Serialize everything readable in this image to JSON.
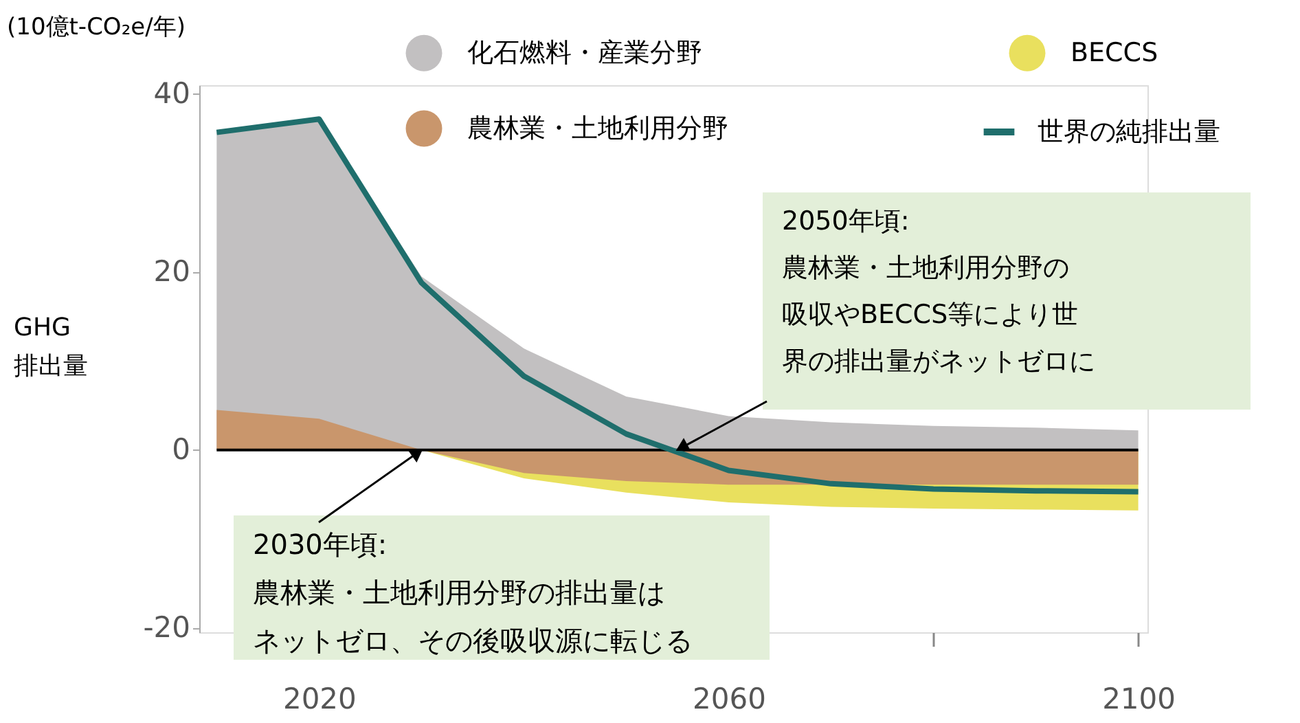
{
  "chart_data": {
    "type": "area",
    "title": "(10億t-CO₂e/年)",
    "ylabel": "GHG\n排出量",
    "x": [
      2010,
      2020,
      2030,
      2040,
      2050,
      2060,
      2070,
      2080,
      2090,
      2100
    ],
    "series": [
      {
        "name": "化石燃料・産業分野",
        "color": "#c2c0c1",
        "values": [
          35.7,
          37.2,
          19.5,
          11.4,
          6.0,
          3.8,
          3.1,
          2.7,
          2.5,
          2.2
        ]
      },
      {
        "name": "BECCS",
        "color": "#e9e05e",
        "values": [
          0,
          0,
          0,
          -3.2,
          -4.8,
          -5.9,
          -6.4,
          -6.6,
          -6.7,
          -6.8
        ]
      },
      {
        "name": "農林業・土地利用分野",
        "color": "#c9966c",
        "values": [
          4.5,
          3.5,
          0,
          -2.6,
          -3.5,
          -3.9,
          -3.9,
          -3.9,
          -3.9,
          -3.9
        ]
      },
      {
        "name": "世界の純排出量",
        "type": "line",
        "color": "#1f6e6c",
        "values": [
          35.7,
          37.2,
          18.8,
          8.3,
          1.8,
          -2.3,
          -3.8,
          -4.4,
          -4.6,
          -4.7
        ]
      }
    ],
    "xlim": [
      2008.3,
      2100.9
    ],
    "xticks": [
      2020,
      2060,
      {
        "value": 2080,
        "label": null
      },
      2100
    ],
    "ylim": [
      -20.5,
      41
    ],
    "yticks": [
      -20,
      0,
      20,
      40
    ],
    "ref_lines": [
      {
        "axis": "y",
        "value": 0,
        "color": "#000000"
      }
    ],
    "annotations": [
      {
        "text": "2050年頃:\n農林業・土地利用分野の吸収やBECCS等により世界の排出量がネットゼロに",
        "x": 2055,
        "y": 0
      },
      {
        "text": "2030年頃:\n農林業・土地利用分野の排出量はネットゼロ、その後吸収源に転じる",
        "x": 2030,
        "y": 0
      }
    ],
    "grid": false,
    "legend": "top",
    "marker": "none",
    "line_style": "solid"
  }
}
